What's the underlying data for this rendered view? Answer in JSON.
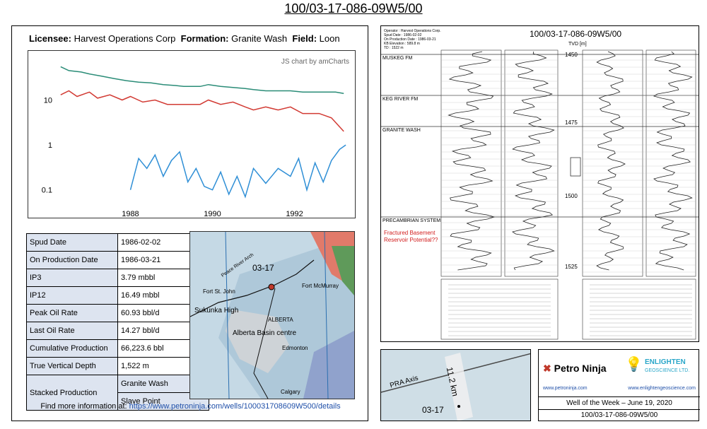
{
  "page_title": "100/03-17-086-09W5/00",
  "production_panel": {
    "licensee_label": "Licensee:",
    "licensee": "Harvest Operations Corp",
    "formation_label": "Formation:",
    "formation": "Granite Wash",
    "field_label": "Field:",
    "field": "Loon",
    "credit": "JS chart by amCharts"
  },
  "chart_data": {
    "type": "line",
    "title": "",
    "yscale": "log",
    "ylim": [
      0.04,
      60
    ],
    "y_ticks": [
      "10",
      "1",
      "0.1"
    ],
    "x_ticks": [
      "1988",
      "1990",
      "1992"
    ],
    "xlim": [
      1986.2,
      1993.3
    ],
    "series": [
      {
        "color": "#2a8c77",
        "points": [
          [
            1986.3,
            55
          ],
          [
            1986.5,
            45
          ],
          [
            1986.8,
            42
          ],
          [
            1987.0,
            38
          ],
          [
            1987.3,
            34
          ],
          [
            1987.6,
            30
          ],
          [
            1987.9,
            27
          ],
          [
            1988.2,
            25
          ],
          [
            1988.5,
            24
          ],
          [
            1988.8,
            22
          ],
          [
            1989.1,
            21
          ],
          [
            1989.3,
            20
          ],
          [
            1989.7,
            20
          ],
          [
            1989.9,
            22
          ],
          [
            1990.2,
            20
          ],
          [
            1990.5,
            19
          ],
          [
            1990.8,
            18
          ],
          [
            1991.0,
            17
          ],
          [
            1991.3,
            16
          ],
          [
            1991.6,
            16
          ],
          [
            1991.9,
            16
          ],
          [
            1992.2,
            15
          ],
          [
            1992.6,
            15
          ],
          [
            1993.0,
            15
          ],
          [
            1993.2,
            14
          ]
        ]
      },
      {
        "color": "#d23a33",
        "points": [
          [
            1986.3,
            13
          ],
          [
            1986.5,
            16
          ],
          [
            1986.7,
            12
          ],
          [
            1987.0,
            15
          ],
          [
            1987.2,
            11
          ],
          [
            1987.5,
            13
          ],
          [
            1987.8,
            10
          ],
          [
            1988.0,
            12
          ],
          [
            1988.3,
            9
          ],
          [
            1988.6,
            10
          ],
          [
            1988.9,
            8
          ],
          [
            1989.2,
            8
          ],
          [
            1989.7,
            8
          ],
          [
            1989.9,
            10
          ],
          [
            1990.2,
            8
          ],
          [
            1990.5,
            9
          ],
          [
            1990.8,
            7
          ],
          [
            1991.0,
            6
          ],
          [
            1991.3,
            7
          ],
          [
            1991.6,
            6
          ],
          [
            1991.9,
            7
          ],
          [
            1992.2,
            5
          ],
          [
            1992.6,
            5
          ],
          [
            1992.9,
            4
          ],
          [
            1993.2,
            2
          ]
        ]
      },
      {
        "color": "#2f8fd6",
        "points": [
          [
            1988.0,
            0.1
          ],
          [
            1988.2,
            0.5
          ],
          [
            1988.4,
            0.3
          ],
          [
            1988.6,
            0.6
          ],
          [
            1988.8,
            0.2
          ],
          [
            1989.0,
            0.45
          ],
          [
            1989.2,
            0.7
          ],
          [
            1989.4,
            0.15
          ],
          [
            1989.6,
            0.3
          ],
          [
            1989.8,
            0.12
          ],
          [
            1990.0,
            0.1
          ],
          [
            1990.2,
            0.25
          ],
          [
            1990.4,
            0.08
          ],
          [
            1990.6,
            0.2
          ],
          [
            1990.8,
            0.07
          ],
          [
            1991.0,
            0.3
          ],
          [
            1991.3,
            0.14
          ],
          [
            1991.6,
            0.3
          ],
          [
            1991.9,
            0.2
          ],
          [
            1992.1,
            0.5
          ],
          [
            1992.3,
            0.1
          ],
          [
            1992.5,
            0.4
          ],
          [
            1992.7,
            0.15
          ],
          [
            1992.9,
            0.45
          ],
          [
            1993.1,
            0.8
          ],
          [
            1993.25,
            1.0
          ]
        ]
      }
    ]
  },
  "well_info": {
    "rows": [
      {
        "label": "Spud Date",
        "value": "1986-02-02"
      },
      {
        "label": "On Production Date",
        "value": "1986-03-21"
      },
      {
        "label": "IP3",
        "value": "3.79 mbbl"
      },
      {
        "label": "IP12",
        "value": "16.49 mbbl"
      },
      {
        "label": "Peak Oil Rate",
        "value": "60.93 bbl/d"
      },
      {
        "label": "Last Oil Rate",
        "value": "14.27 bbl/d"
      },
      {
        "label": "Cumulative Production",
        "value": "66,223.6 bbl"
      },
      {
        "label": "True Vertical Depth",
        "value": "1,522 m"
      }
    ],
    "stacked_label": "Stacked Production",
    "stacked_values": [
      "Granite Wash",
      "Slave Point"
    ]
  },
  "map": {
    "well_label": "03-17",
    "labels": [
      "Peace River Arch",
      "Fort St. John",
      "Sukunka High",
      "ALBERTA",
      "Alberta Basin centre",
      "Fort McMurray",
      "Edmonton",
      "Calgary"
    ]
  },
  "footer": {
    "prefix": "Find more information at: ",
    "url": "https://www.petroninja.com/wells/100031708609W500/details"
  },
  "log_panel": {
    "title": "100/03-17-086-09W5/00",
    "header_lines": [
      "Operator : Harvest Operations Corp.",
      "Spud Date : 1986-02-02",
      "On Production Date : 1986-03-21",
      "KB Elevation : 589.8 m",
      "TD : 1522 m"
    ],
    "tvd_label": "TVD [m]",
    "depths": [
      "1450",
      "1475",
      "1500",
      "1525"
    ],
    "formations": [
      "MUSKEG FM",
      "KEG RIVER FM",
      "GRANITE WASH",
      "PRECAMBRIAN SYSTEM"
    ],
    "annotation": "Fractured Basement\nReservoir Potential??"
  },
  "pra_map": {
    "axis_label": "PRA Axis",
    "distance": "11.2 km",
    "well_label": "03-17"
  },
  "brand_panel": {
    "petro_ninja": "Petro Ninja",
    "enlighten": "ENLIGHTEN",
    "enlighten_sub": "GEOSCIENCE LTD.",
    "url_left": "www.petroninja.com",
    "url_right": "www.enlightengeoscience.com",
    "week": "Well of the Week – June 19, 2020",
    "uwi": "100/03-17-086-09W5/00"
  },
  "colors": {
    "accent": "#1f4fa8",
    "table_key": "#dde4f0"
  }
}
